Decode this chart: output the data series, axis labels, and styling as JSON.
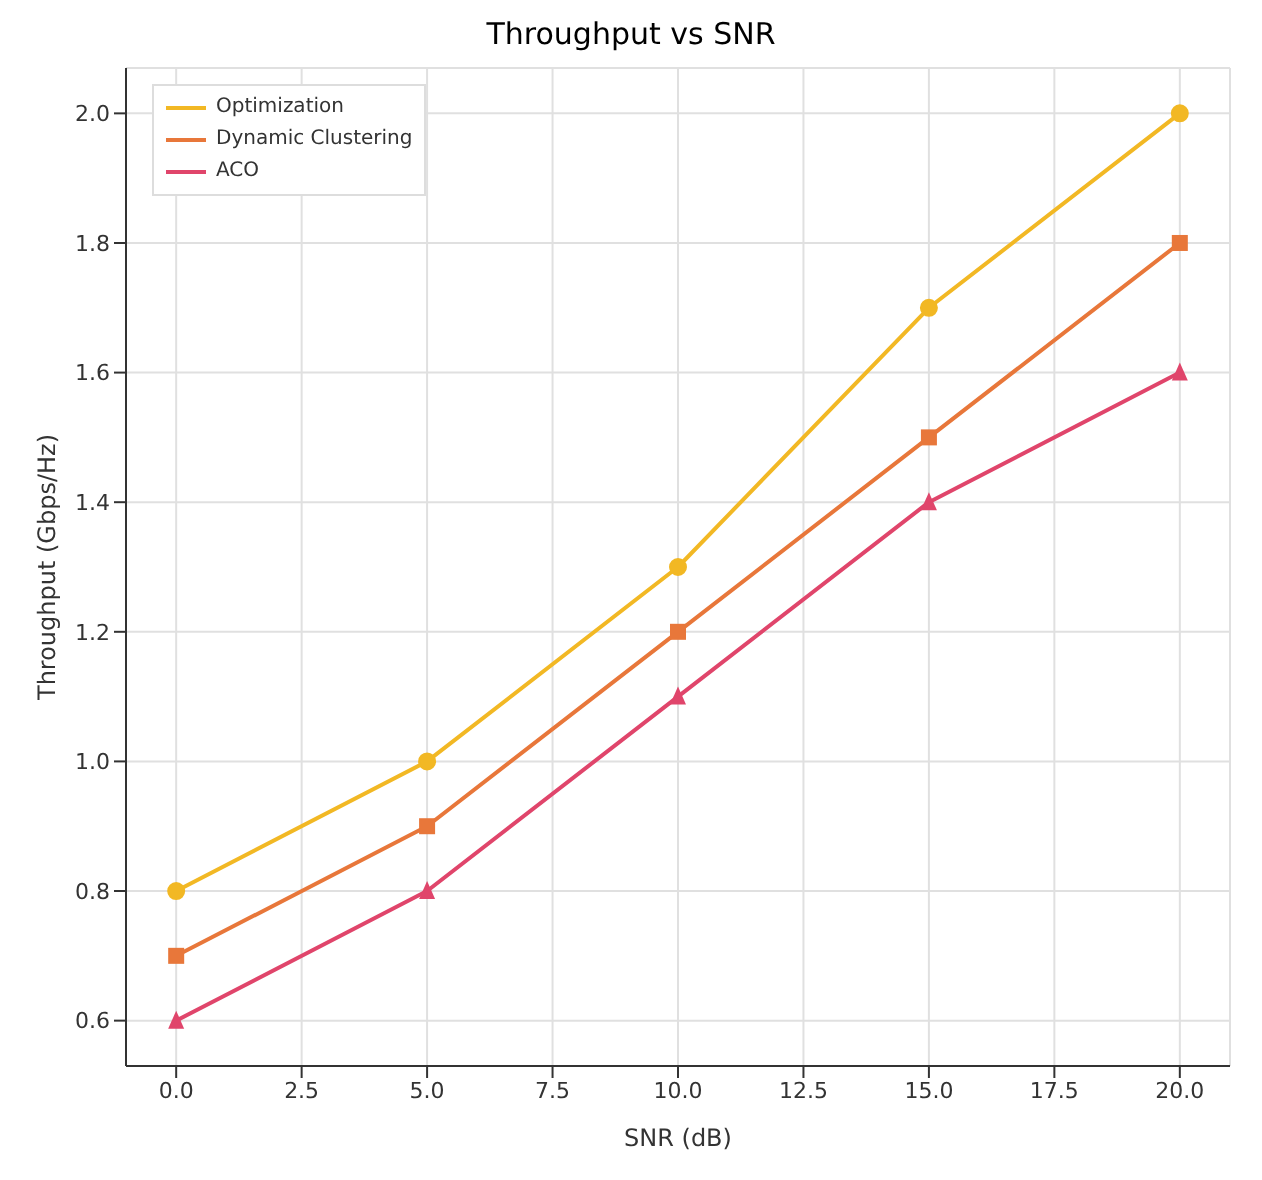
{
  "chart_data": {
    "type": "line",
    "title": "Throughput vs SNR",
    "xlabel": "SNR (dB)",
    "ylabel": "Throughput (Gbps/Hz)",
    "x": [
      0,
      5,
      10,
      15,
      20
    ],
    "series": [
      {
        "name": "Optimization",
        "color": "#f2b824",
        "marker": "circle",
        "values": [
          0.8,
          1.0,
          1.3,
          1.7,
          2.0
        ]
      },
      {
        "name": "Dynamic Clustering",
        "color": "#e8773a",
        "marker": "square",
        "values": [
          0.7,
          0.9,
          1.2,
          1.5,
          1.8
        ]
      },
      {
        "name": "ACO",
        "color": "#e0456b",
        "marker": "triangle",
        "values": [
          0.6,
          0.8,
          1.1,
          1.4,
          1.6
        ]
      }
    ],
    "xlim": [
      -1,
      21
    ],
    "xticks": [
      {
        "value": 0,
        "label": "0.0"
      },
      {
        "value": 2.5,
        "label": "2.5"
      },
      {
        "value": 5,
        "label": "5.0"
      },
      {
        "value": 7.5,
        "label": "7.5"
      },
      {
        "value": 10,
        "label": "10.0"
      },
      {
        "value": 12.5,
        "label": "12.5"
      },
      {
        "value": 15,
        "label": "15.0"
      },
      {
        "value": 17.5,
        "label": "17.5"
      },
      {
        "value": 20,
        "label": "20.0"
      }
    ],
    "ylim": [
      0.53,
      2.07
    ],
    "yticks": [
      {
        "value": 0.6,
        "label": "0.6"
      },
      {
        "value": 0.8,
        "label": "0.8"
      },
      {
        "value": 1.0,
        "label": "1.0"
      },
      {
        "value": 1.2,
        "label": "1.2"
      },
      {
        "value": 1.4,
        "label": "1.4"
      },
      {
        "value": 1.6,
        "label": "1.6"
      },
      {
        "value": 1.8,
        "label": "1.8"
      },
      {
        "value": 2.0,
        "label": "2.0"
      }
    ],
    "grid": true,
    "legend": "top left",
    "line_style": "solid"
  }
}
